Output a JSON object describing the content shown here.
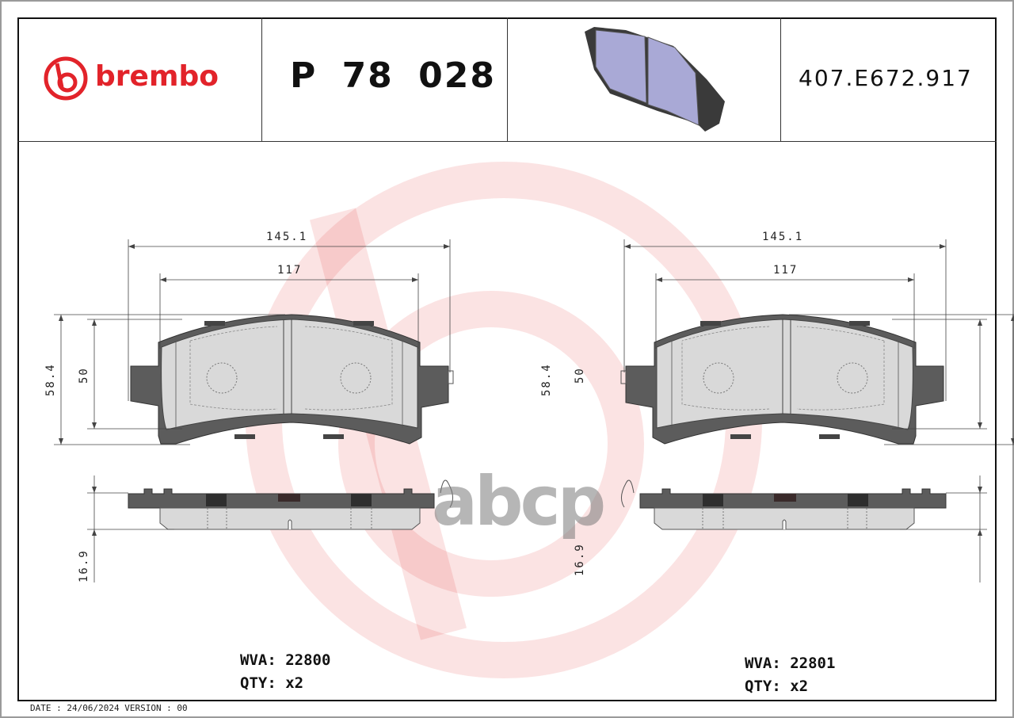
{
  "header": {
    "brand": "brembo",
    "part_number": "P 78 028",
    "reference_code": "407.E672.917"
  },
  "watermark": {
    "text": "abcp"
  },
  "drawings": [
    {
      "dimensions": {
        "overall_width": "145.1",
        "friction_width": "117",
        "overall_height": "58.4",
        "friction_height": "50",
        "thickness": "16.9"
      },
      "wva_label": "WVA:",
      "wva": "22800",
      "qty_label": "QTY:",
      "qty": "x2"
    },
    {
      "dimensions": {
        "overall_width": "145.1",
        "friction_width": "117",
        "overall_height": "58.4",
        "friction_height": "50",
        "thickness": "16.9"
      },
      "wva_label": "WVA:",
      "wva": "22801",
      "qty_label": "QTY:",
      "qty": "x2"
    }
  ],
  "footer": {
    "date": "DATE : 24/06/2024 VERSION : 00"
  },
  "colors": {
    "brand_red": "#e2232a",
    "backing_plate": "#5c5c5c",
    "friction": "#d9d9d9",
    "thumbnail": "#a9a9d6"
  }
}
